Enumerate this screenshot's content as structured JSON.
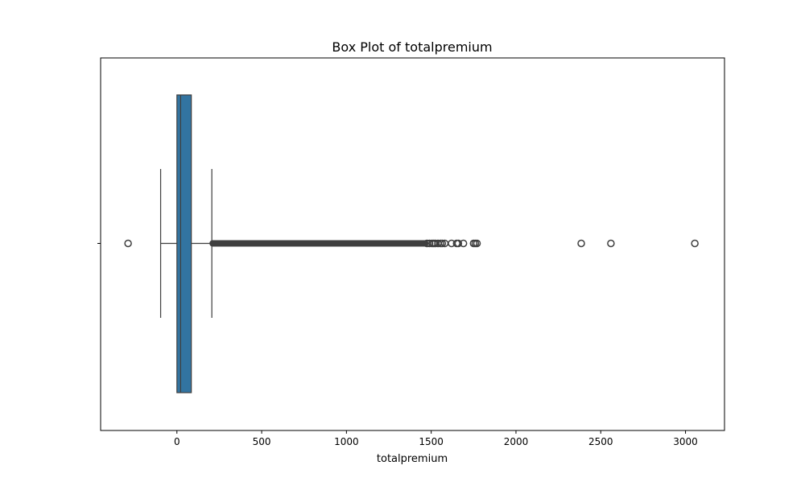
{
  "chart_data": {
    "type": "box",
    "title": "Box Plot of totalpremium",
    "xlabel": "totalpremium",
    "ylabel": "",
    "orientation": "horizontal",
    "xlim": [
      -450,
      3230
    ],
    "xticks": [
      0,
      500,
      1000,
      1500,
      2000,
      2500,
      3000
    ],
    "xtick_labels": [
      "0",
      "500",
      "1000",
      "1500",
      "2000",
      "2500",
      "3000"
    ],
    "box": {
      "q1": 0,
      "median": 21.9,
      "q3": 85.0,
      "whisker_low": -96.0,
      "whisker_high": 206.0
    },
    "outliers": {
      "dense_range": [
        206,
        1470
      ],
      "points": [
        -288,
        1475,
        1490,
        1505,
        1515,
        1525,
        1540,
        1555,
        1565,
        1580,
        1620,
        1650,
        1660,
        1690,
        1750,
        1760,
        1770,
        2385,
        2560,
        3055
      ]
    },
    "grid": false,
    "colors": {
      "box_fill": "#3274a1",
      "lines": "#3f3f3f",
      "outlier_edge": "#3f3f3f"
    }
  }
}
